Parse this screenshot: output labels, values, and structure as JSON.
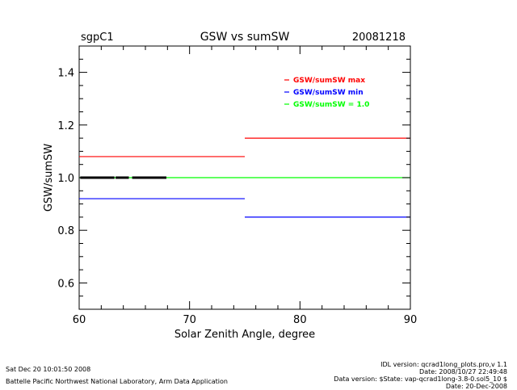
{
  "chart_data": {
    "type": "line",
    "site": "sgpC1",
    "title": "GSW vs sumSW",
    "date": "20081218",
    "xlabel": "Solar Zenith Angle, degree",
    "ylabel": "GSW/sumSW",
    "xlim": [
      60,
      90
    ],
    "ylim": [
      0.5,
      1.5
    ],
    "xticks": [
      60,
      70,
      80,
      90
    ],
    "xtick_labels": [
      "60",
      "70",
      "80",
      "90"
    ],
    "yticks": [
      0.6,
      0.8,
      1.0,
      1.2,
      1.4
    ],
    "ytick_labels": [
      "0.6",
      "0.8",
      "1.0",
      "1.2",
      "1.4"
    ],
    "grid": false,
    "legend_position": "top-right",
    "legend": [
      {
        "label": "GSW/sumSW max",
        "color": "#ff0000"
      },
      {
        "label": "GSW/sumSW min",
        "color": "#0000ff"
      },
      {
        "label": "GSW/sumSW = 1.0",
        "color": "#00ff00"
      }
    ],
    "series": [
      {
        "name": "GSW/sumSW max",
        "color": "#ff0000",
        "segments": [
          {
            "x": [
              60,
              75
            ],
            "y": 1.08
          },
          {
            "x": [
              75,
              90
            ],
            "y": 1.15
          }
        ]
      },
      {
        "name": "GSW/sumSW min",
        "color": "#0000ff",
        "segments": [
          {
            "x": [
              60,
              75
            ],
            "y": 0.92
          },
          {
            "x": [
              75,
              90
            ],
            "y": 0.85
          }
        ]
      },
      {
        "name": "GSW/sumSW = 1.0",
        "color": "#00ff00",
        "segments": [
          {
            "x": [
              60,
              90
            ],
            "y": 1.0
          }
        ]
      },
      {
        "name": "data",
        "color": "#000000",
        "segments": [
          {
            "x": [
              60.1,
              63.2
            ],
            "y": 1.0
          },
          {
            "x": [
              63.3,
              64.5
            ],
            "y": 1.0
          },
          {
            "x": [
              64.8,
              67.9
            ],
            "y": 1.0
          }
        ]
      }
    ]
  },
  "footer": {
    "timestamp": "Sat Dec 20 10:01:50 2008",
    "organization": "Battelle Pacific Northwest National Laboratory, Arm Data Application",
    "idl_version": "IDL version: qcrad1long_plots.pro,v 1.1",
    "idl_date": "Date: 2008/10/27 22:49:48",
    "data_version": "Data version: $State: vap-qcrad1long-3.8-0.sol5_10 $",
    "data_date": "Date: 20-Dec-2008"
  }
}
